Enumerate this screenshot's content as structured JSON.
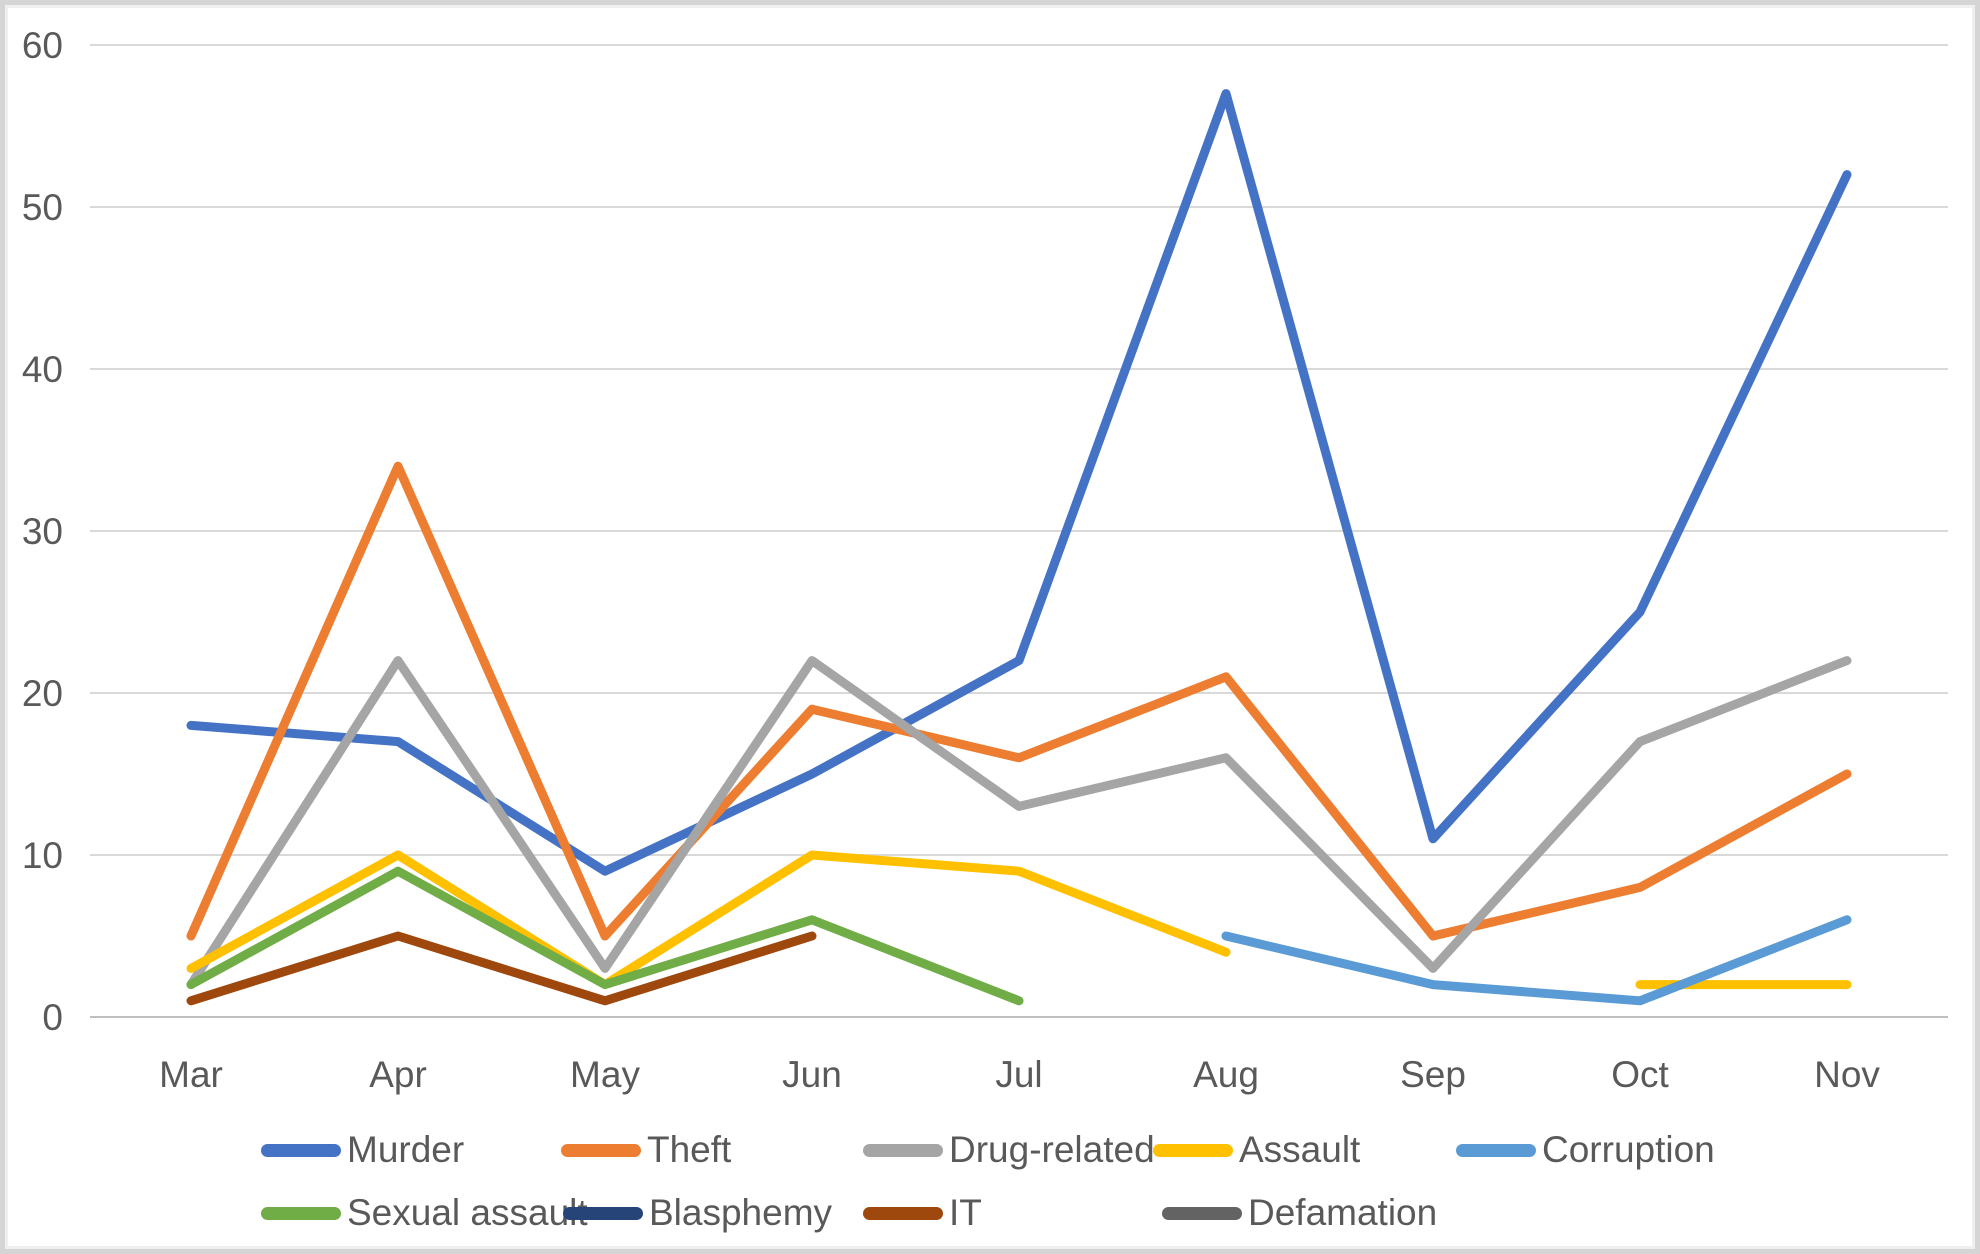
{
  "chart_data": {
    "type": "line",
    "title": "",
    "xlabel": "",
    "ylabel": "",
    "categories": [
      "Mar",
      "Apr",
      "May",
      "Jun",
      "Jul",
      "Aug",
      "Sep",
      "Oct",
      "Nov"
    ],
    "y_ticks": [
      0,
      10,
      20,
      30,
      40,
      50,
      60
    ],
    "ylim": [
      0,
      60
    ],
    "grid": "horizontal",
    "legend_position": "bottom",
    "colors": {
      "gridline": "#D9D9D9",
      "axis_line": "#BFBFBF",
      "tick_text": "#595959",
      "legend_text": "#595959",
      "background": "#FFFFFF"
    },
    "series": [
      {
        "name": "Murder",
        "color": "#4472C4",
        "values": [
          18,
          17,
          9,
          15,
          22,
          57,
          11,
          25,
          52
        ]
      },
      {
        "name": "Theft",
        "color": "#ED7D31",
        "values": [
          5,
          34,
          5,
          19,
          16,
          21,
          5,
          8,
          15
        ]
      },
      {
        "name": "Drug-related",
        "color": "#A5A5A5",
        "values": [
          2,
          22,
          3,
          22,
          13,
          16,
          3,
          17,
          22
        ]
      },
      {
        "name": "Assault",
        "color": "#FFC000",
        "values": [
          3,
          10,
          2,
          10,
          9,
          4,
          null,
          2,
          2
        ]
      },
      {
        "name": "Corruption",
        "color": "#5B9BD5",
        "values": [
          null,
          null,
          null,
          null,
          null,
          5,
          2,
          1,
          6
        ]
      },
      {
        "name": "Sexual assault",
        "color": "#70AD47",
        "values": [
          2,
          9,
          2,
          6,
          1,
          null,
          null,
          null,
          null
        ]
      },
      {
        "name": "Blasphemy",
        "color": "#264478",
        "values": [
          null,
          null,
          null,
          null,
          null,
          null,
          null,
          null,
          null
        ]
      },
      {
        "name": "IT",
        "color": "#9E480E",
        "values": [
          1,
          5,
          1,
          5,
          null,
          null,
          null,
          null,
          null
        ]
      },
      {
        "name": "Defamation",
        "color": "#636363",
        "values": [
          null,
          null,
          null,
          null,
          null,
          null,
          null,
          null,
          null
        ]
      }
    ],
    "legend_rows": [
      [
        0,
        1,
        2,
        3,
        4
      ],
      [
        5,
        6,
        7,
        8
      ]
    ]
  }
}
